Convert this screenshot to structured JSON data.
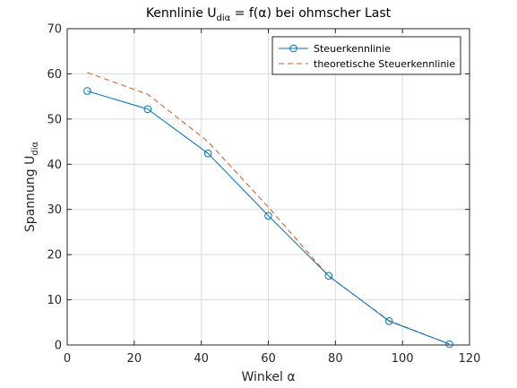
{
  "chart_data": {
    "type": "line",
    "title": {
      "prefix": "Kennlinie U",
      "sub": "diα",
      "suffix": " = f(α) bei ohmscher Last"
    },
    "xlabel": "Winkel α",
    "ylabel": {
      "prefix": "Spannung U",
      "sub": "diα"
    },
    "xlim": [
      0,
      120
    ],
    "ylim": [
      0,
      70
    ],
    "xticks": [
      0,
      20,
      40,
      60,
      80,
      100,
      120
    ],
    "yticks": [
      0,
      10,
      20,
      30,
      40,
      50,
      60,
      70
    ],
    "grid": true,
    "legend_position": "top-right",
    "series": [
      {
        "name": "Steuerkennlinie",
        "color": "#0072bd",
        "style": "solid",
        "marker": "circle",
        "x": [
          6,
          24,
          42,
          60,
          78,
          96,
          114
        ],
        "y": [
          56.2,
          52.2,
          42.4,
          28.6,
          15.3,
          5.3,
          0.2
        ]
      },
      {
        "name": "theoretische Steuerkennlinie",
        "color": "#d95319",
        "style": "dashed",
        "marker": "none",
        "x": [
          6,
          24,
          42,
          60,
          78,
          96,
          114
        ],
        "y": [
          60.3,
          55.5,
          45.0,
          30.5,
          15.2,
          5.4,
          0.2
        ]
      }
    ]
  }
}
